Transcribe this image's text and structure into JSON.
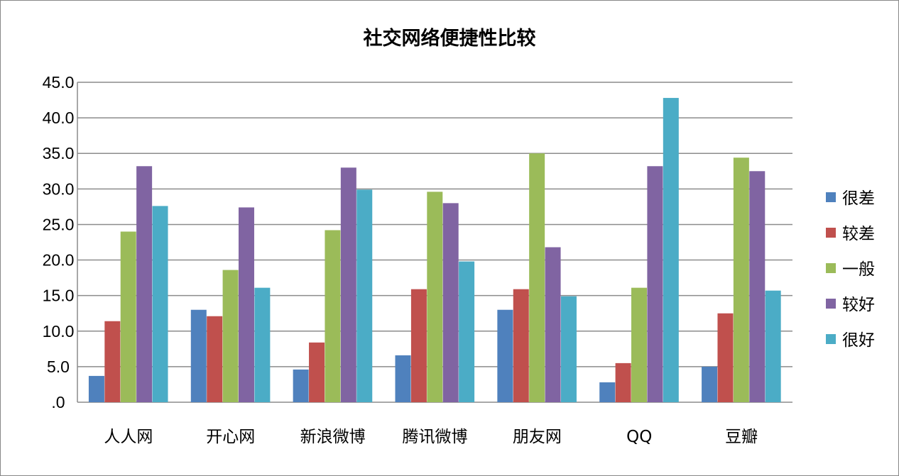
{
  "chart_data": {
    "type": "bar",
    "title": "社交网络便捷性比较",
    "categories": [
      "人人网",
      "开心网",
      "新浪微博",
      "腾讯微博",
      "朋友网",
      "QQ",
      "豆瓣"
    ],
    "ylim": [
      0,
      45
    ],
    "yticks": [
      ".0",
      "5.0",
      "10.0",
      "15.0",
      "20.0",
      "25.0",
      "30.0",
      "35.0",
      "40.0",
      "45.0"
    ],
    "grid": true,
    "legend_position": "right",
    "series": [
      {
        "name": "很差",
        "color": "#4F81BD",
        "values": [
          3.7,
          13.0,
          4.6,
          6.6,
          13.0,
          2.8,
          5.0
        ]
      },
      {
        "name": "较差",
        "color": "#C0504D",
        "values": [
          11.4,
          12.1,
          8.4,
          15.9,
          15.9,
          5.5,
          12.5
        ]
      },
      {
        "name": "一般",
        "color": "#9BBB59",
        "values": [
          24.0,
          18.6,
          24.2,
          29.6,
          35.0,
          16.1,
          34.4
        ]
      },
      {
        "name": "较好",
        "color": "#8064A2",
        "values": [
          33.2,
          27.4,
          33.0,
          28.0,
          21.8,
          33.2,
          32.5
        ]
      },
      {
        "name": "很好",
        "color": "#4BACC6",
        "values": [
          27.6,
          16.1,
          29.9,
          19.8,
          14.9,
          42.8,
          15.7
        ]
      }
    ]
  }
}
